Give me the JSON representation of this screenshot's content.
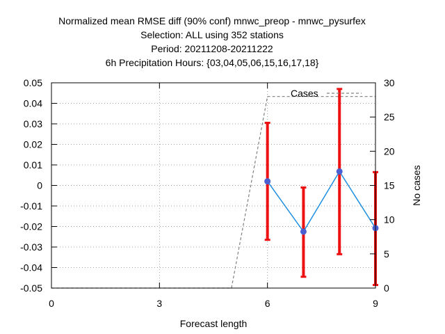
{
  "chart_data": {
    "type": "line",
    "title_lines": [
      "Normalized mean RMSE diff (90% conf) mnwc_preop - mnwc_pysurfex",
      "Selection: ALL using   352 stations",
      "Period: 20211208-20211222",
      "6h Precipitation   Hours: {03,04,05,06,15,16,17,18}"
    ],
    "xlabel": "Forecast length",
    "ylabel": "",
    "y2label": "No cases",
    "xlim": [
      0,
      9
    ],
    "ylim": [
      -0.05,
      0.05
    ],
    "y2lim": [
      0,
      30
    ],
    "x_ticks": [
      0,
      3,
      6,
      9
    ],
    "x_tick_labels": [
      "0",
      "3",
      "6",
      "9"
    ],
    "y_ticks": [
      -0.05,
      -0.04,
      -0.03,
      -0.02,
      -0.01,
      0,
      0.01,
      0.02,
      0.03,
      0.04,
      0.05
    ],
    "y_tick_labels": [
      "-0.05",
      "-0.04",
      "-0.03",
      "-0.02",
      "-0.01",
      "0",
      "0.01",
      "0.02",
      "0.03",
      "0.04",
      "0.05"
    ],
    "y2_ticks": [
      0,
      5,
      10,
      15,
      20,
      25,
      30
    ],
    "y2_tick_labels": [
      "0",
      "5",
      "10",
      "15",
      "20",
      "25",
      "30"
    ],
    "grid": true,
    "legend": {
      "placement": "top-right",
      "entries": [
        "Cases"
      ]
    },
    "series": [
      {
        "x": [
          6,
          7,
          8,
          9
        ],
        "y": [
          0.002,
          -0.0225,
          0.0068,
          -0.0208
        ],
        "ci_low": [
          -0.0265,
          -0.0445,
          -0.0335,
          -0.0485
        ],
        "ci_high": [
          0.0305,
          -0.001,
          0.047,
          0.0065
        ],
        "color": "#1f8fe0",
        "marker_color": "#4a5fd0",
        "errorbar_color": "#ee1111"
      },
      {
        "name": "Cases",
        "axis": "y2",
        "x": [
          0,
          1,
          2,
          3,
          4,
          5,
          6,
          7,
          8,
          9
        ],
        "y": [
          0,
          0,
          0,
          0,
          0,
          0,
          28,
          28,
          28,
          28
        ],
        "color": "#808080",
        "dash": "dashed"
      }
    ]
  }
}
